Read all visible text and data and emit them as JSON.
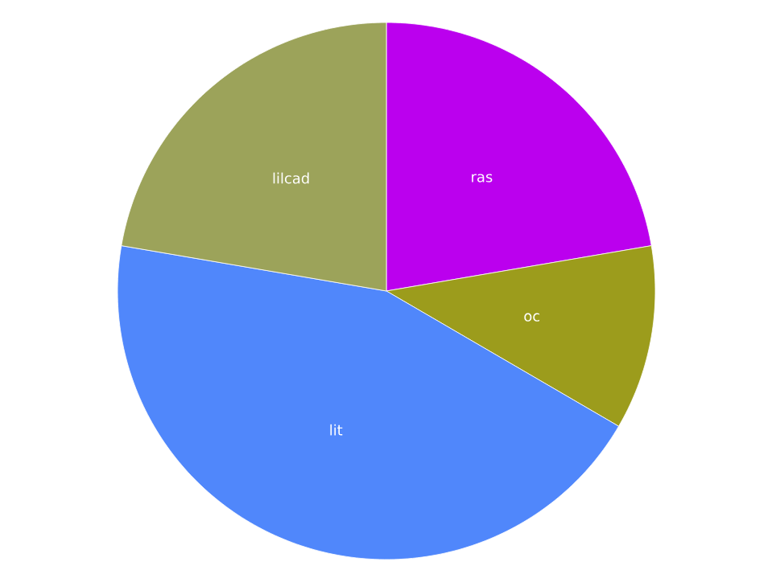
{
  "chart_data": {
    "type": "pie",
    "categories": [
      "ras",
      "oc",
      "lit",
      "lilcad"
    ],
    "values": [
      22.3,
      11.1,
      44.3,
      22.3
    ],
    "colors": [
      "#bb00ee",
      "#9c9c1c",
      "#5087fb",
      "#9ca35a"
    ]
  }
}
